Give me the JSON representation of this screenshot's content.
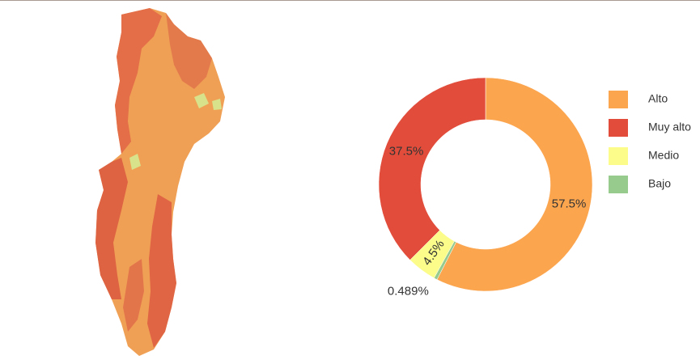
{
  "chart_data": {
    "type": "donut",
    "categories": [
      "Alto",
      "Muy alto",
      "Medio",
      "Bajo"
    ],
    "values": [
      57.5,
      37.5,
      4.5,
      0.489
    ],
    "value_labels": [
      "57.5%",
      "37.5%",
      "4.5%",
      "0.489%"
    ],
    "colors": [
      "#fca54f",
      "#e24d3b",
      "#fbfc8a",
      "#97cb8e"
    ],
    "legend": "right"
  }
}
